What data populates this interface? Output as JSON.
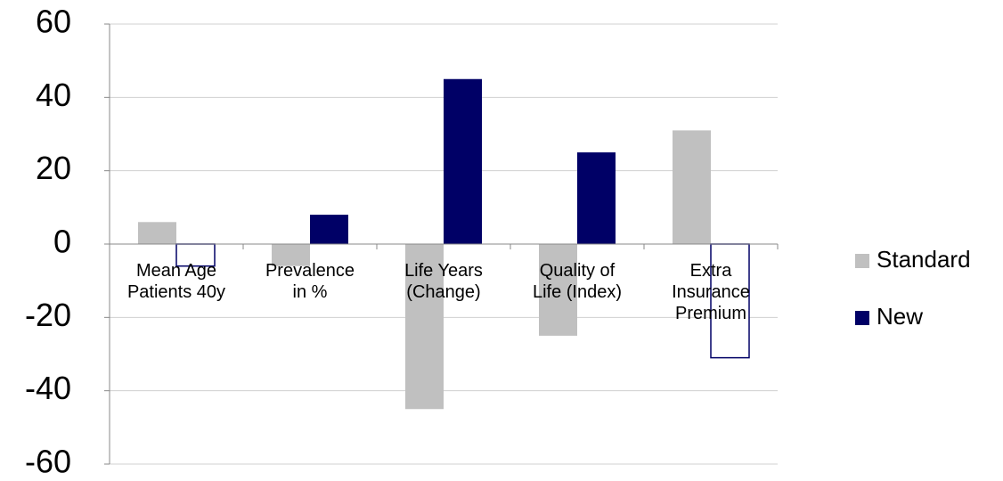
{
  "chart_data": {
    "type": "bar",
    "categories": [
      "Mean Age\nPatients 40y",
      "Prevalence\nin %",
      "Life Years\n(Change)",
      "Quality of\nLife (Index)",
      "Extra\nInsurance\nPremium"
    ],
    "series": [
      {
        "name": "Standard",
        "color": "#c0c0c0",
        "values": [
          6,
          -6,
          -45,
          -25,
          31
        ]
      },
      {
        "name": "New",
        "color": "#000066",
        "values": [
          -6,
          8,
          45,
          25,
          -31
        ],
        "invert_if_negative": true
      }
    ],
    "ylim": [
      -60,
      60
    ],
    "yticks": [
      -60,
      -40,
      -20,
      0,
      20,
      40,
      60
    ],
    "grid": true,
    "legend": "right"
  }
}
